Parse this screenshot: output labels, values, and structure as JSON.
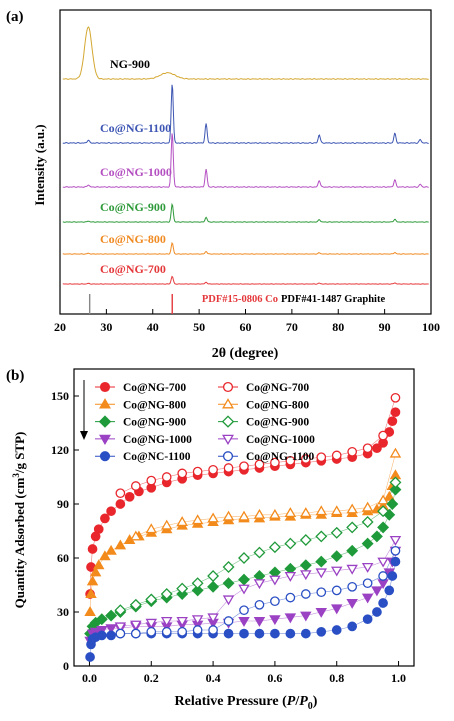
{
  "colors": {
    "ng900": "#d4a731",
    "co1100": "#3d56b3",
    "co1000": "#b44fc2",
    "co900": "#2f9a3a",
    "co800": "#f08a22",
    "co700": "#e5383b",
    "pdf_co": "#e5383b",
    "pdf_graphite": "#888888",
    "b700": "#e8262c",
    "b800": "#f38b1c",
    "b900": "#1f9a3a",
    "b1000": "#9b42c4",
    "b1100": "#2a4fc4"
  },
  "chart_data": [
    {
      "type": "line",
      "panel_label": "(a)",
      "xlabel": "2θ (degree)",
      "ylabel": "Intensity (a.u.)",
      "xlim": [
        20,
        100
      ],
      "xticks": [
        20,
        30,
        40,
        50,
        60,
        70,
        80,
        90,
        100
      ],
      "series": [
        {
          "name": "NG-900",
          "color_key": "ng900",
          "peaks": [
            [
              26.1,
              1.0
            ],
            [
              43.2,
              0.12
            ]
          ],
          "broad": true
        },
        {
          "name": "Co@NG-1100",
          "color_key": "co1100",
          "peaks": [
            [
              26.1,
              0.05
            ],
            [
              44.2,
              1.0
            ],
            [
              51.5,
              0.32
            ],
            [
              75.9,
              0.14
            ],
            [
              92.2,
              0.16
            ],
            [
              97.7,
              0.06
            ]
          ],
          "broad": false
        },
        {
          "name": "Co@NG-1000",
          "color_key": "co1000",
          "peaks": [
            [
              26.1,
              0.04
            ],
            [
              44.2,
              1.0
            ],
            [
              51.5,
              0.32
            ],
            [
              75.9,
              0.12
            ],
            [
              92.2,
              0.13
            ],
            [
              97.7,
              0.05
            ]
          ],
          "broad": false
        },
        {
          "name": "Co@NG-900",
          "color_key": "co900",
          "peaks": [
            [
              26.1,
              0.03
            ],
            [
              44.2,
              0.6
            ],
            [
              51.5,
              0.15
            ],
            [
              75.9,
              0.08
            ],
            [
              92.2,
              0.09
            ]
          ],
          "broad": false
        },
        {
          "name": "Co@NG-800",
          "color_key": "co800",
          "peaks": [
            [
              26.1,
              0.03
            ],
            [
              44.2,
              0.45
            ],
            [
              51.5,
              0.1
            ],
            [
              75.9,
              0.05
            ],
            [
              92.2,
              0.06
            ]
          ],
          "broad": false
        },
        {
          "name": "Co@NG-700",
          "color_key": "co700",
          "peaks": [
            [
              26.1,
              0.03
            ],
            [
              44.2,
              0.35
            ],
            [
              51.5,
              0.08
            ],
            [
              75.9,
              0.04
            ],
            [
              92.2,
              0.05
            ]
          ],
          "broad": false
        }
      ],
      "reference_lines": [
        {
          "label": "PDF#15-0806 Co",
          "color_key": "pdf_co",
          "x": [
            44.2
          ]
        },
        {
          "label": "PDF#41-1487 Graphite",
          "color_key": "pdf_graphite",
          "x": [
            26.4
          ]
        }
      ]
    },
    {
      "type": "scatter",
      "panel_label": "(b)",
      "xlabel": "Relative Pressure (P/P0)",
      "ylabel": "Quantity Adsorbed (cm³/g STP)",
      "xlim": [
        -0.05,
        1.05
      ],
      "ylim": [
        0,
        165
      ],
      "xticks": [
        0.0,
        0.2,
        0.4,
        0.6,
        0.8,
        1.0
      ],
      "yticks": [
        0,
        30,
        60,
        90,
        120,
        150
      ],
      "legend": [
        {
          "label": "Co@NG-700",
          "marker": "circle",
          "filled": true,
          "color_key": "b700"
        },
        {
          "label": "Co@NG-700",
          "marker": "circle",
          "filled": false,
          "color_key": "b700"
        },
        {
          "label": "Co@NG-800",
          "marker": "triangle-up",
          "filled": true,
          "color_key": "b800"
        },
        {
          "label": "Co@NG-800",
          "marker": "triangle-up",
          "filled": false,
          "color_key": "b800"
        },
        {
          "label": "Co@NG-900",
          "marker": "diamond",
          "filled": true,
          "color_key": "b900"
        },
        {
          "label": "Co@NG-900",
          "marker": "diamond",
          "filled": false,
          "color_key": "b900"
        },
        {
          "label": "Co@NG-1000",
          "marker": "triangle-down",
          "filled": true,
          "color_key": "b1000"
        },
        {
          "label": "Co@NG-1000",
          "marker": "triangle-down",
          "filled": false,
          "color_key": "b1000"
        },
        {
          "label": "Co@NC-1100",
          "marker": "circle",
          "filled": true,
          "color_key": "b1100"
        },
        {
          "label": "Co@NG-1100",
          "marker": "circle",
          "filled": false,
          "color_key": "b1100"
        }
      ],
      "series": [
        {
          "marker": "circle",
          "filled": true,
          "color_key": "b700",
          "x": [
            0.002,
            0.005,
            0.01,
            0.02,
            0.03,
            0.05,
            0.07,
            0.1,
            0.13,
            0.16,
            0.2,
            0.25,
            0.3,
            0.35,
            0.4,
            0.45,
            0.5,
            0.55,
            0.6,
            0.65,
            0.7,
            0.75,
            0.8,
            0.85,
            0.9,
            0.93,
            0.95,
            0.97,
            0.98,
            0.99
          ],
          "y": [
            40,
            55,
            65,
            72,
            76,
            82,
            86,
            90,
            94,
            97,
            99,
            102,
            104,
            106,
            107,
            108,
            109,
            110,
            111,
            112,
            113,
            114,
            115,
            116,
            118,
            121,
            124,
            130,
            136,
            141
          ]
        },
        {
          "marker": "circle",
          "filled": false,
          "color_key": "b700",
          "x": [
            0.99,
            0.95,
            0.9,
            0.85,
            0.8,
            0.75,
            0.7,
            0.65,
            0.6,
            0.55,
            0.5,
            0.45,
            0.4,
            0.35,
            0.3,
            0.25,
            0.2,
            0.15,
            0.1
          ],
          "y": [
            149,
            128,
            121,
            119,
            117,
            116,
            115,
            114,
            113,
            112,
            111,
            110,
            109,
            108,
            107,
            105,
            103,
            100,
            96
          ]
        },
        {
          "marker": "triangle-up",
          "filled": true,
          "color_key": "b800",
          "x": [
            0.002,
            0.005,
            0.01,
            0.02,
            0.03,
            0.05,
            0.07,
            0.1,
            0.13,
            0.16,
            0.2,
            0.25,
            0.3,
            0.35,
            0.4,
            0.45,
            0.5,
            0.55,
            0.6,
            0.65,
            0.7,
            0.75,
            0.8,
            0.85,
            0.9,
            0.93,
            0.95,
            0.97,
            0.98,
            0.99
          ],
          "y": [
            30,
            40,
            47,
            52,
            56,
            61,
            64,
            67,
            70,
            72,
            74,
            76,
            78,
            79,
            80,
            81,
            82,
            82,
            83,
            83,
            84,
            84,
            85,
            85,
            86,
            87,
            89,
            94,
            100,
            106
          ]
        },
        {
          "marker": "triangle-up",
          "filled": false,
          "color_key": "b800",
          "x": [
            0.99,
            0.95,
            0.9,
            0.85,
            0.8,
            0.75,
            0.7,
            0.65,
            0.6,
            0.55,
            0.5,
            0.45,
            0.4,
            0.35,
            0.3,
            0.25,
            0.2,
            0.15
          ],
          "y": [
            118,
            92,
            88,
            87,
            86,
            86,
            85,
            85,
            84,
            84,
            83,
            83,
            82,
            81,
            80,
            78,
            76,
            72
          ]
        },
        {
          "marker": "diamond",
          "filled": true,
          "color_key": "b900",
          "x": [
            0.002,
            0.01,
            0.02,
            0.04,
            0.07,
            0.1,
            0.15,
            0.2,
            0.25,
            0.3,
            0.35,
            0.4,
            0.45,
            0.5,
            0.55,
            0.6,
            0.65,
            0.7,
            0.75,
            0.8,
            0.85,
            0.9,
            0.93,
            0.95,
            0.97,
            0.98,
            0.99
          ],
          "y": [
            18,
            22,
            24,
            26,
            28,
            30,
            33,
            36,
            38,
            40,
            42,
            44,
            46,
            48,
            50,
            52,
            54,
            56,
            58,
            61,
            64,
            68,
            72,
            77,
            84,
            90,
            98
          ]
        },
        {
          "marker": "diamond",
          "filled": false,
          "color_key": "b900",
          "x": [
            0.99,
            0.95,
            0.9,
            0.85,
            0.8,
            0.75,
            0.7,
            0.65,
            0.6,
            0.55,
            0.5,
            0.45,
            0.4,
            0.35,
            0.3,
            0.25,
            0.2,
            0.15,
            0.1
          ],
          "y": [
            102,
            86,
            80,
            77,
            74,
            72,
            70,
            68,
            66,
            63,
            60,
            55,
            50,
            46,
            43,
            40,
            37,
            34,
            31
          ]
        },
        {
          "marker": "triangle-down",
          "filled": true,
          "color_key": "b1000",
          "x": [
            0.002,
            0.01,
            0.02,
            0.04,
            0.07,
            0.1,
            0.15,
            0.2,
            0.25,
            0.3,
            0.35,
            0.4,
            0.45,
            0.5,
            0.55,
            0.6,
            0.65,
            0.7,
            0.75,
            0.8,
            0.85,
            0.9,
            0.93,
            0.95,
            0.97,
            0.98,
            0.99
          ],
          "y": [
            14,
            18,
            19,
            20,
            21,
            21,
            22,
            22,
            22,
            23,
            23,
            24,
            24,
            25,
            25,
            26,
            27,
            28,
            30,
            32,
            35,
            38,
            42,
            46,
            52,
            58,
            64
          ]
        },
        {
          "marker": "triangle-down",
          "filled": false,
          "color_key": "b1000",
          "x": [
            0.99,
            0.95,
            0.9,
            0.85,
            0.8,
            0.75,
            0.7,
            0.65,
            0.6,
            0.55,
            0.5,
            0.45,
            0.4,
            0.35,
            0.3,
            0.25,
            0.2,
            0.15,
            0.1
          ],
          "y": [
            70,
            58,
            55,
            54,
            53,
            52,
            51,
            50,
            48,
            46,
            43,
            37,
            27,
            26,
            25,
            25,
            24,
            23,
            22
          ]
        },
        {
          "marker": "circle",
          "filled": true,
          "color_key": "b1100",
          "x": [
            0.002,
            0.005,
            0.01,
            0.02,
            0.04,
            0.07,
            0.1,
            0.15,
            0.2,
            0.25,
            0.3,
            0.35,
            0.4,
            0.45,
            0.5,
            0.55,
            0.6,
            0.65,
            0.7,
            0.75,
            0.8,
            0.85,
            0.9,
            0.93,
            0.95,
            0.97,
            0.98,
            0.99
          ],
          "y": [
            5,
            12,
            15,
            16,
            17,
            17,
            18,
            18,
            18,
            18,
            18,
            18,
            18,
            18,
            18,
            18,
            18,
            18,
            18,
            19,
            20,
            22,
            26,
            30,
            35,
            42,
            50,
            58
          ]
        },
        {
          "marker": "circle",
          "filled": false,
          "color_key": "b1100",
          "x": [
            0.99,
            0.95,
            0.9,
            0.85,
            0.8,
            0.75,
            0.7,
            0.65,
            0.6,
            0.55,
            0.5,
            0.45,
            0.4,
            0.35,
            0.3,
            0.25,
            0.2,
            0.15,
            0.1
          ],
          "y": [
            64,
            50,
            46,
            44,
            42,
            41,
            40,
            38,
            36,
            34,
            31,
            25,
            20,
            20,
            19,
            19,
            19,
            18,
            18
          ]
        }
      ]
    }
  ]
}
